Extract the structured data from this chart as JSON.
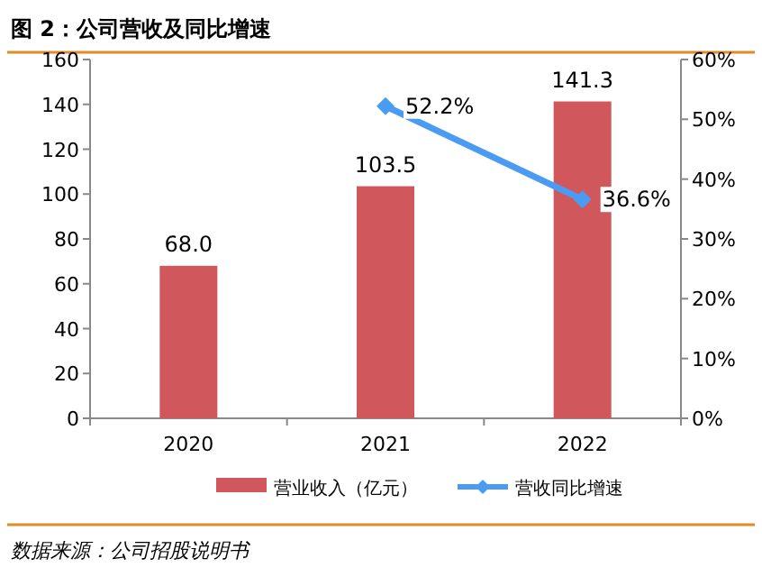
{
  "chart_data": {
    "type": "bar",
    "title": "图 2：公司营收及同比增速",
    "categories": [
      "2020",
      "2021",
      "2022"
    ],
    "series": [
      {
        "name": "营业收入（亿元）",
        "color": "#d0575c",
        "values": [
          68.0,
          103.5,
          141.3
        ],
        "value_labels": [
          "68.0",
          "103.5",
          "141.3"
        ]
      },
      {
        "name": "营收同比增速",
        "type": "line",
        "axis": "y2",
        "color": "#4a9cf2",
        "values": [
          null,
          52.2,
          36.6
        ],
        "value_labels": [
          null,
          "52.2%",
          "36.6%"
        ]
      }
    ],
    "ylim": [
      0,
      160
    ],
    "yticks": [
      0,
      20,
      40,
      60,
      80,
      100,
      120,
      140,
      160
    ],
    "y2lim": [
      0,
      60
    ],
    "y2ticks": [
      {
        "value": 0,
        "label": "0%"
      },
      {
        "value": 10,
        "label": "10%"
      },
      {
        "value": 20,
        "label": "20%"
      },
      {
        "value": 30,
        "label": "30%"
      },
      {
        "value": 40,
        "label": "40%"
      },
      {
        "value": 50,
        "label": "50%"
      },
      {
        "value": 60,
        "label": "60%"
      }
    ],
    "marker": "diamond",
    "line_style": "solid",
    "legend": "bottom",
    "grid": false,
    "annotations": [
      "数据来源：公司招股说明书"
    ]
  }
}
